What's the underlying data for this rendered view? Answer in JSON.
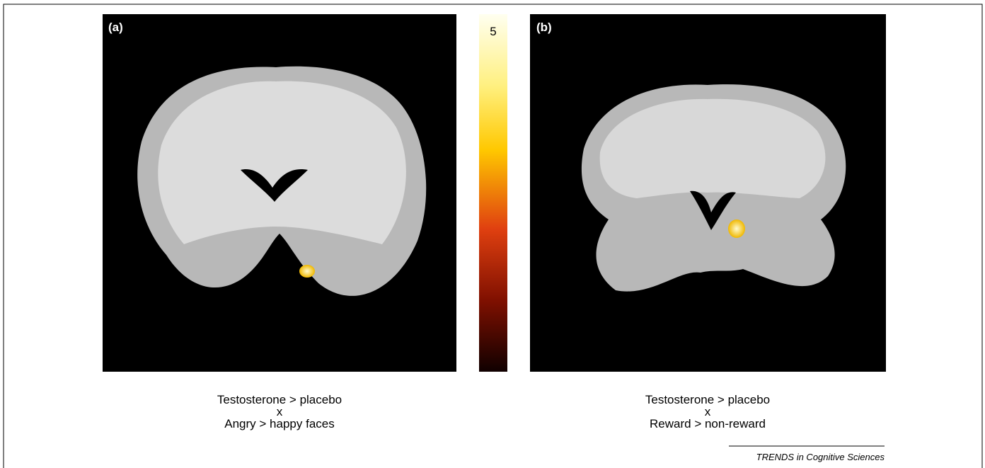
{
  "panels": [
    {
      "label": "(a)",
      "caption": [
        "Testosterone > placebo",
        "x",
        "Angry > happy faces"
      ]
    },
    {
      "label": "(b)",
      "caption": [
        "Testosterone > placebo",
        "x",
        "Reward > non-reward"
      ]
    }
  ],
  "colorbar": {
    "label": "5"
  },
  "footer": "TRENDS in Cognitive Sciences"
}
